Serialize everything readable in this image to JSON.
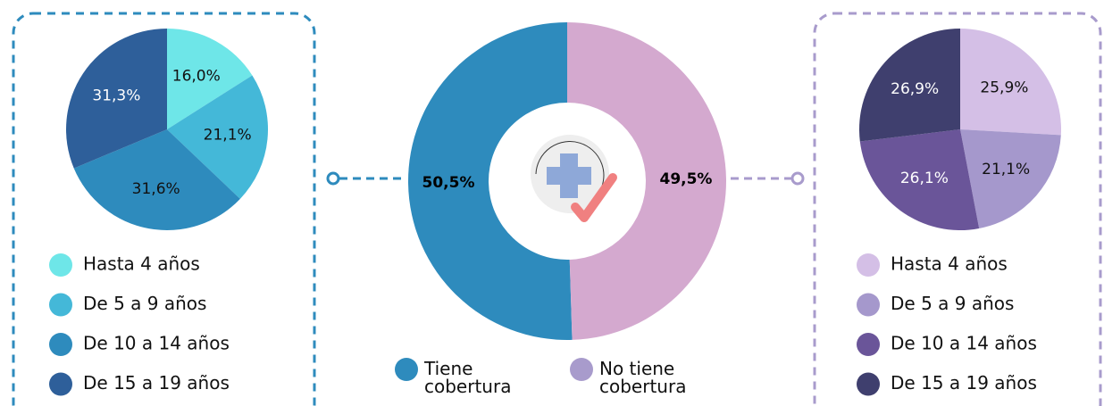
{
  "chart_data": [
    {
      "type": "pie",
      "categories": [
        "Hasta 4 años",
        "De 5 a 9 años",
        "De 10 a 14 años",
        "De 15 a 19 años"
      ],
      "values": [
        16.0,
        21.1,
        31.6,
        31.3
      ],
      "value_labels": [
        "16,0%",
        "21,1%",
        "31,6%",
        "31,3%"
      ],
      "colors": [
        "#6ee6e8",
        "#44b8d8",
        "#2e8bbd",
        "#2e5f9a"
      ]
    },
    {
      "type": "donut",
      "categories": [
        "Tiene cobertura",
        "No tiene cobertura"
      ],
      "values": [
        50.5,
        49.5
      ],
      "value_labels": [
        "50,5%",
        "49,5%"
      ],
      "colors": [
        "#2e8bbd",
        "#d4a9cf"
      ],
      "legend_colors": [
        "#2e8bbd",
        "#a89bcc"
      ]
    },
    {
      "type": "pie",
      "categories": [
        "Hasta 4 años",
        "De 5 a 9 años",
        "De 10 a 14 años",
        "De 15 a 19 años"
      ],
      "values": [
        25.9,
        21.1,
        26.1,
        26.9
      ],
      "value_labels": [
        "25,9%",
        "21,1%",
        "26,1%",
        "26,9%"
      ],
      "colors": [
        "#d4bfe6",
        "#a598cc",
        "#6a5599",
        "#3f3f6e"
      ]
    }
  ]
}
